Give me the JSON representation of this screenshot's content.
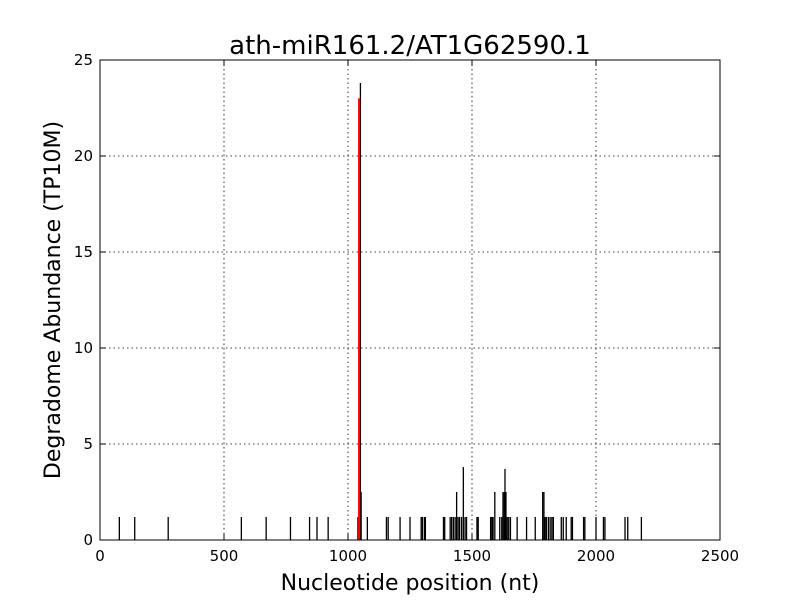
{
  "chart_data": {
    "type": "bar",
    "title": "ath-miR161.2/AT1G62590.1",
    "xlabel": "Nucleotide position (nt)",
    "ylabel": "Degradome Abundance (TP10M)",
    "xlim": [
      0,
      2500
    ],
    "ylim": [
      0,
      25
    ],
    "xticks": [
      0,
      500,
      1000,
      1500,
      2000,
      2500
    ],
    "yticks": [
      0,
      5,
      10,
      15,
      20,
      25
    ],
    "grid": true,
    "colors": {
      "series": "#000000",
      "target": "#ff0000"
    },
    "series": [
      {
        "values": [
          [
            78,
            1.2
          ],
          [
            140,
            1.2
          ],
          [
            275,
            1.2
          ],
          [
            570,
            1.2
          ],
          [
            670,
            1.2
          ],
          [
            768,
            1.2
          ],
          [
            845,
            1.2
          ],
          [
            875,
            1.2
          ],
          [
            920,
            1.2
          ],
          [
            1040,
            1.2
          ],
          [
            1050,
            23.8
          ],
          [
            1053,
            2.5
          ],
          [
            1078,
            1.2
          ],
          [
            1155,
            1.2
          ],
          [
            1162,
            1.2
          ],
          [
            1210,
            1.2
          ],
          [
            1250,
            1.2
          ],
          [
            1295,
            1.2
          ],
          [
            1300,
            1.2
          ],
          [
            1308,
            1.2
          ],
          [
            1312,
            1.2
          ],
          [
            1385,
            1.2
          ],
          [
            1390,
            1.2
          ],
          [
            1412,
            1.2
          ],
          [
            1418,
            1.2
          ],
          [
            1425,
            1.2
          ],
          [
            1432,
            1.2
          ],
          [
            1438,
            2.5
          ],
          [
            1444,
            1.2
          ],
          [
            1450,
            1.2
          ],
          [
            1458,
            1.2
          ],
          [
            1465,
            3.8
          ],
          [
            1472,
            1.2
          ],
          [
            1478,
            1.2
          ],
          [
            1520,
            1.2
          ],
          [
            1525,
            1.2
          ],
          [
            1575,
            1.2
          ],
          [
            1580,
            1.2
          ],
          [
            1585,
            1.2
          ],
          [
            1592,
            2.5
          ],
          [
            1612,
            1.2
          ],
          [
            1620,
            1.2
          ],
          [
            1625,
            2.5
          ],
          [
            1630,
            2.5
          ],
          [
            1633,
            3.7
          ],
          [
            1637,
            2.5
          ],
          [
            1642,
            1.2
          ],
          [
            1648,
            1.2
          ],
          [
            1655,
            1.2
          ],
          [
            1682,
            1.2
          ],
          [
            1720,
            1.2
          ],
          [
            1755,
            1.2
          ],
          [
            1785,
            2.5
          ],
          [
            1790,
            2.5
          ],
          [
            1795,
            1.2
          ],
          [
            1800,
            1.2
          ],
          [
            1808,
            1.2
          ],
          [
            1815,
            1.2
          ],
          [
            1822,
            1.2
          ],
          [
            1828,
            1.2
          ],
          [
            1860,
            1.2
          ],
          [
            1868,
            1.2
          ],
          [
            1880,
            1.2
          ],
          [
            1900,
            1.2
          ],
          [
            1905,
            1.2
          ],
          [
            1950,
            1.2
          ],
          [
            1955,
            1.2
          ],
          [
            2000,
            1.2
          ],
          [
            2030,
            1.2
          ],
          [
            2036,
            1.2
          ],
          [
            2117,
            1.2
          ],
          [
            2128,
            1.2
          ],
          [
            2183,
            1.2
          ]
        ]
      },
      {
        "values": [
          [
            1045,
            23.0
          ]
        ]
      }
    ]
  }
}
